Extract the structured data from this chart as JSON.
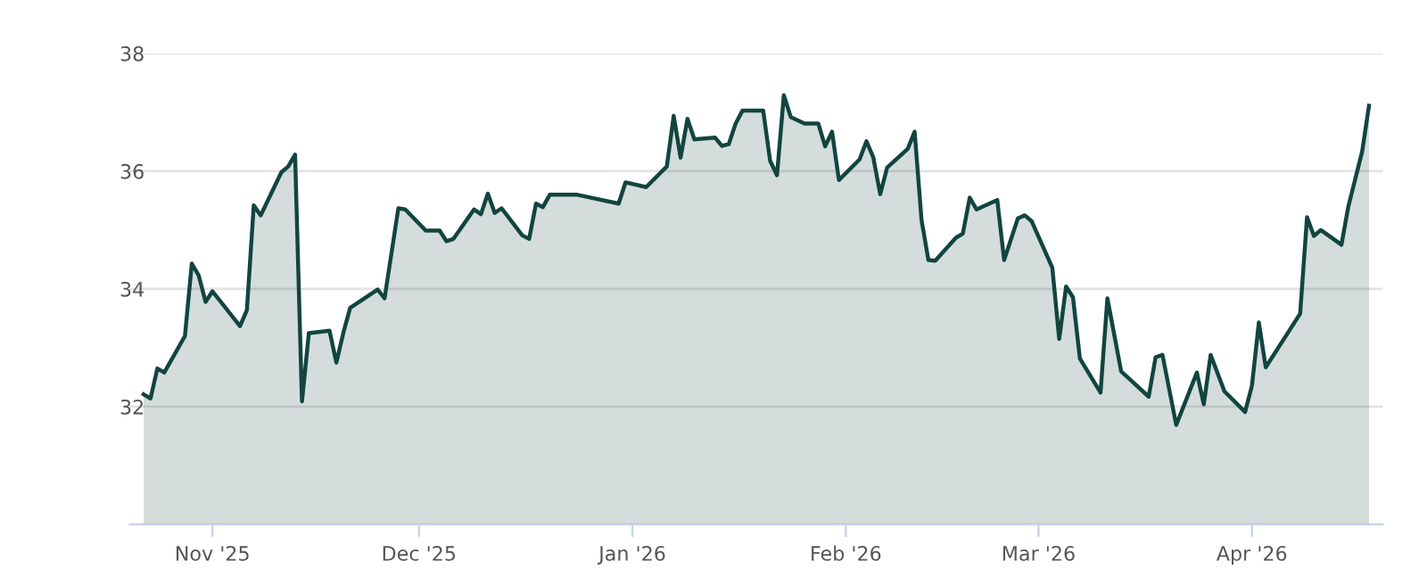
{
  "chart_data": {
    "type": "area",
    "x": [
      "2025-10-22",
      "2025-10-23",
      "2025-10-24",
      "2025-10-25",
      "2025-10-28",
      "2025-10-29",
      "2025-10-30",
      "2025-10-31",
      "2025-11-01",
      "2025-11-05",
      "2025-11-06",
      "2025-11-07",
      "2025-11-08",
      "2025-11-11",
      "2025-11-12",
      "2025-11-13",
      "2025-11-14",
      "2025-11-15",
      "2025-11-18",
      "2025-11-19",
      "2025-11-20",
      "2025-11-21",
      "2025-11-25",
      "2025-11-26",
      "2025-11-28",
      "2025-11-29",
      "2025-12-02",
      "2025-12-04",
      "2025-12-05",
      "2025-12-06",
      "2025-12-09",
      "2025-12-10",
      "2025-12-11",
      "2025-12-12",
      "2025-12-13",
      "2025-12-16",
      "2025-12-17",
      "2025-12-18",
      "2025-12-19",
      "2025-12-20",
      "2025-12-24",
      "2025-12-30",
      "2025-12-31",
      "2026-01-03",
      "2026-01-06",
      "2026-01-07",
      "2026-01-08",
      "2026-01-09",
      "2026-01-10",
      "2026-01-13",
      "2026-01-14",
      "2026-01-15",
      "2026-01-16",
      "2026-01-17",
      "2026-01-20",
      "2026-01-21",
      "2026-01-22",
      "2026-01-23",
      "2026-01-24",
      "2026-01-26",
      "2026-01-28",
      "2026-01-29",
      "2026-01-30",
      "2026-01-31",
      "2026-02-03",
      "2026-02-04",
      "2026-02-05",
      "2026-02-06",
      "2026-02-07",
      "2026-02-10",
      "2026-02-11",
      "2026-02-12",
      "2026-02-13",
      "2026-02-14",
      "2026-02-17",
      "2026-02-18",
      "2026-02-19",
      "2026-02-20",
      "2026-02-23",
      "2026-02-24",
      "2026-02-26",
      "2026-02-27",
      "2026-02-28",
      "2026-03-03",
      "2026-03-04",
      "2026-03-05",
      "2026-03-06",
      "2026-03-07",
      "2026-03-10",
      "2026-03-11",
      "2026-03-13",
      "2026-03-17",
      "2026-03-18",
      "2026-03-19",
      "2026-03-21",
      "2026-03-24",
      "2026-03-25",
      "2026-03-26",
      "2026-03-28",
      "2026-03-31",
      "2026-04-01",
      "2026-04-02",
      "2026-04-03",
      "2026-04-08",
      "2026-04-09",
      "2026-04-10",
      "2026-04-11",
      "2026-04-14",
      "2026-04-15",
      "2026-04-17",
      "2026-04-18"
    ],
    "series": [
      {
        "color": "#12453f",
        "values": [
          32.21,
          32.14,
          32.65,
          32.58,
          33.2,
          34.43,
          34.23,
          33.78,
          33.96,
          33.37,
          33.64,
          35.42,
          35.25,
          35.98,
          36.08,
          36.28,
          32.09,
          33.25,
          33.29,
          32.75,
          33.25,
          33.68,
          33.99,
          33.84,
          35.37,
          35.35,
          34.99,
          34.99,
          34.81,
          34.85,
          35.35,
          35.27,
          35.62,
          35.29,
          35.37,
          34.91,
          34.85,
          35.45,
          35.39,
          35.6,
          35.6,
          35.45,
          35.81,
          35.73,
          36.08,
          36.94,
          36.23,
          36.89,
          36.54,
          36.57,
          36.43,
          36.46,
          36.81,
          37.03,
          37.03,
          36.18,
          35.93,
          37.29,
          36.92,
          36.81,
          36.81,
          36.42,
          36.67,
          35.85,
          36.2,
          36.51,
          36.23,
          35.61,
          36.06,
          36.38,
          36.67,
          35.17,
          34.49,
          34.48,
          34.87,
          34.94,
          35.55,
          35.35,
          35.51,
          34.49,
          35.2,
          35.25,
          35.15,
          34.36,
          33.15,
          34.04,
          33.86,
          32.82,
          32.24,
          33.84,
          32.6,
          32.17,
          32.84,
          32.88,
          31.69,
          32.58,
          32.04,
          32.88,
          32.26,
          31.91,
          32.36,
          33.43,
          32.67,
          33.58,
          35.22,
          34.9,
          35.0,
          34.75,
          35.4,
          36.33,
          37.11
        ]
      }
    ],
    "xlim": [
      "2025-10-20",
      "2026-04-20"
    ],
    "xticks": [
      {
        "value": "2025-11-01",
        "label": "Nov '25"
      },
      {
        "value": "2025-12-01",
        "label": "Dec '25"
      },
      {
        "value": "2026-01-01",
        "label": "Jan '26"
      },
      {
        "value": "2026-02-01",
        "label": "Feb '26"
      },
      {
        "value": "2026-03-01",
        "label": "Mar '26"
      },
      {
        "value": "2026-04-01",
        "label": "Apr '26"
      }
    ],
    "ylim": [
      30,
      38
    ],
    "yticks": [
      {
        "value": 30,
        "label": null
      },
      32,
      34,
      36,
      38
    ],
    "grid": "y"
  }
}
